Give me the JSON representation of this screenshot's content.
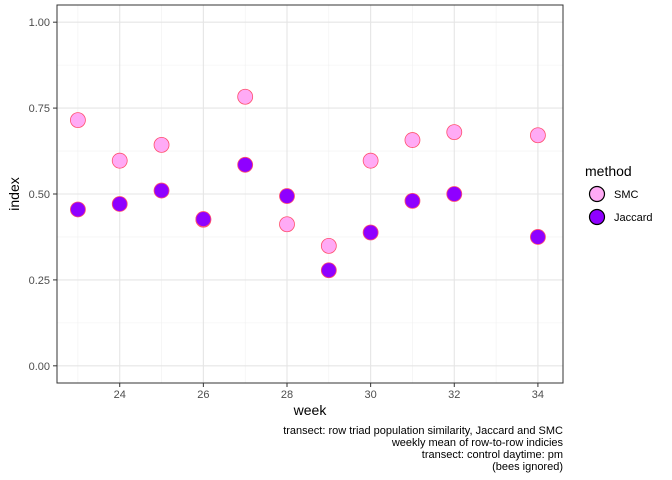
{
  "chart_data": {
    "type": "scatter",
    "xlabel": "week",
    "ylabel": "index",
    "xlim": [
      22.5,
      34.6
    ],
    "ylim": [
      -0.05,
      1.05
    ],
    "x_ticks": [
      24,
      26,
      28,
      30,
      32,
      34
    ],
    "x_tick_labels": [
      "24",
      "26",
      "28",
      "30",
      "32",
      "34"
    ],
    "y_ticks": [
      0,
      0.25,
      0.5,
      0.75,
      1.0
    ],
    "y_tick_labels": [
      "0.00",
      "0.25",
      "0.50",
      "0.75",
      "1.00"
    ],
    "grid": true,
    "legend": {
      "title": "method",
      "position": "right"
    },
    "series": [
      {
        "name": "SMC",
        "color": "#ffaaf5",
        "stroke": "#ff4f6e",
        "points": [
          {
            "x": 23,
            "y": 0.715
          },
          {
            "x": 24,
            "y": 0.597
          },
          {
            "x": 25,
            "y": 0.643
          },
          {
            "x": 26,
            "y": 0.425
          },
          {
            "x": 27,
            "y": 0.783
          },
          {
            "x": 28,
            "y": 0.412
          },
          {
            "x": 29,
            "y": 0.349
          },
          {
            "x": 30,
            "y": 0.597
          },
          {
            "x": 31,
            "y": 0.657
          },
          {
            "x": 32,
            "y": 0.68
          },
          {
            "x": 34,
            "y": 0.671
          }
        ]
      },
      {
        "name": "Jaccard",
        "color": "#8f00ff",
        "stroke": "#ff4f6e",
        "points": [
          {
            "x": 23,
            "y": 0.455
          },
          {
            "x": 24,
            "y": 0.471
          },
          {
            "x": 25,
            "y": 0.51
          },
          {
            "x": 26,
            "y": 0.427
          },
          {
            "x": 27,
            "y": 0.585
          },
          {
            "x": 28,
            "y": 0.494
          },
          {
            "x": 29,
            "y": 0.278
          },
          {
            "x": 30,
            "y": 0.388
          },
          {
            "x": 31,
            "y": 0.48
          },
          {
            "x": 32,
            "y": 0.5
          },
          {
            "x": 34,
            "y": 0.375
          }
        ]
      }
    ],
    "caption": [
      "transect: row triad population similarity, Jaccard and SMC",
      "weekly mean of row-to-row indicies",
      "transect: control daytime: pm",
      "(bees ignored)"
    ]
  }
}
